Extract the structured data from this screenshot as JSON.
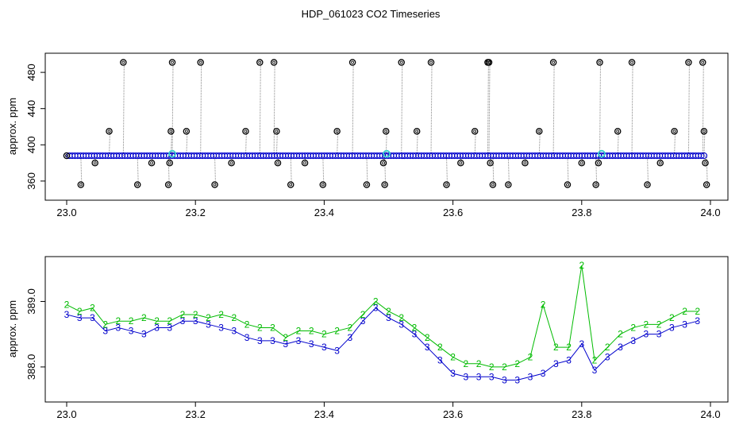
{
  "title": "HDP_061023  CO2 Timeseries",
  "colors": {
    "axis": "#000000",
    "series_black": "#000000",
    "series_blue": "#0000cc",
    "series_cyan": "#33cccc",
    "series_green": "#00bb00",
    "vline": "#888888"
  },
  "chart_data": [
    {
      "type": "scatter",
      "title": "",
      "xlabel": "",
      "ylabel": "approx. ppm",
      "xlim": [
        23.0,
        24.0
      ],
      "ylim": [
        345,
        495
      ],
      "x_ticks": [
        23.0,
        23.2,
        23.4,
        23.6,
        23.8,
        24.0
      ],
      "x_tick_labels": [
        "23.0",
        "23.2",
        "23.4",
        "23.6",
        "23.8",
        "24.0"
      ],
      "y_ticks": [
        360,
        400,
        440,
        480
      ],
      "y_tick_labels": [
        "360",
        "400",
        "440",
        "480"
      ],
      "grid": false,
      "legend": "none",
      "series": [
        {
          "marker": "open-circle",
          "color": "#000000",
          "baseline": 388,
          "x": [
            23.0,
            23.022,
            23.044,
            23.066,
            23.088,
            23.11,
            23.132,
            23.158,
            23.16,
            23.162,
            23.164,
            23.186,
            23.208,
            23.23,
            23.256,
            23.278,
            23.3,
            23.322,
            23.326,
            23.328,
            23.348,
            23.37,
            23.398,
            23.42,
            23.444,
            23.466,
            23.492,
            23.494,
            23.496,
            23.52,
            23.544,
            23.566,
            23.59,
            23.612,
            23.634,
            23.654,
            23.656,
            23.658,
            23.662,
            23.686,
            23.712,
            23.734,
            23.756,
            23.778,
            23.8,
            23.822,
            23.826,
            23.828,
            23.856,
            23.878,
            23.902,
            23.922,
            23.944,
            23.966,
            23.988,
            23.99,
            23.992,
            23.994
          ],
          "y": [
            388,
            356,
            380,
            415,
            491,
            356,
            380,
            356,
            380,
            415,
            491,
            415,
            491,
            356,
            380,
            415,
            491,
            491,
            415,
            380,
            356,
            380,
            356,
            415,
            491,
            356,
            380,
            356,
            415,
            491,
            415,
            491,
            356,
            380,
            415,
            491,
            491,
            380,
            356,
            356,
            380,
            415,
            491,
            356,
            380,
            356,
            380,
            491,
            415,
            491,
            356,
            380,
            415,
            491,
            491,
            415,
            380,
            356
          ]
        },
        {
          "marker": "open-circle",
          "color": "#0000cc",
          "x_start": 23.0,
          "x_end": 23.99,
          "value": 388
        },
        {
          "marker": "open-circle",
          "color": "#33cccc",
          "x": [
            23.164,
            23.497,
            23.831
          ],
          "y": [
            390,
            390,
            390
          ]
        }
      ]
    },
    {
      "type": "scatter",
      "title": "",
      "xlabel": "",
      "ylabel": "approx. ppm",
      "xlim": [
        23.0,
        24.0
      ],
      "ylim": [
        387.55,
        389.6
      ],
      "x_ticks": [
        23.0,
        23.2,
        23.4,
        23.6,
        23.8,
        24.0
      ],
      "x_tick_labels": [
        "23.0",
        "23.2",
        "23.4",
        "23.6",
        "23.8",
        "24.0"
      ],
      "y_ticks": [
        388.0,
        389.0
      ],
      "y_tick_labels": [
        "388.0",
        "389.0"
      ],
      "grid": false,
      "legend": "none",
      "series": [
        {
          "name": "2",
          "marker": "2",
          "color": "#00bb00",
          "x": [
            23.0,
            23.02,
            23.04,
            23.06,
            23.08,
            23.1,
            23.12,
            23.14,
            23.16,
            23.18,
            23.2,
            23.22,
            23.24,
            23.26,
            23.28,
            23.3,
            23.32,
            23.34,
            23.36,
            23.38,
            23.4,
            23.42,
            23.44,
            23.46,
            23.48,
            23.5,
            23.52,
            23.54,
            23.56,
            23.58,
            23.6,
            23.62,
            23.64,
            23.66,
            23.68,
            23.7,
            23.72,
            23.74,
            23.76,
            23.78,
            23.8,
            23.82,
            23.84,
            23.86,
            23.88,
            23.9,
            23.92,
            23.94,
            23.96,
            23.98
          ],
          "y": [
            388.95,
            388.85,
            388.9,
            388.65,
            388.7,
            388.7,
            388.75,
            388.7,
            388.7,
            388.8,
            388.8,
            388.75,
            388.8,
            388.75,
            388.65,
            388.6,
            388.6,
            388.45,
            388.55,
            388.55,
            388.5,
            388.55,
            388.6,
            388.8,
            389.0,
            388.85,
            388.75,
            388.6,
            388.45,
            388.3,
            388.15,
            388.05,
            388.05,
            388.0,
            388.0,
            388.05,
            388.15,
            388.95,
            388.3,
            388.3,
            389.55,
            388.1,
            388.3,
            388.5,
            388.6,
            388.65,
            388.65,
            388.75,
            388.85,
            388.85
          ]
        },
        {
          "name": "3",
          "marker": "3",
          "color": "#0000cc",
          "x": [
            23.0,
            23.02,
            23.04,
            23.06,
            23.08,
            23.1,
            23.12,
            23.14,
            23.16,
            23.18,
            23.2,
            23.22,
            23.24,
            23.26,
            23.28,
            23.3,
            23.32,
            23.34,
            23.36,
            23.38,
            23.4,
            23.42,
            23.44,
            23.46,
            23.48,
            23.5,
            23.52,
            23.54,
            23.56,
            23.58,
            23.6,
            23.62,
            23.64,
            23.66,
            23.68,
            23.7,
            23.72,
            23.74,
            23.76,
            23.78,
            23.8,
            23.82,
            23.84,
            23.86,
            23.88,
            23.9,
            23.92,
            23.94,
            23.96,
            23.98
          ],
          "y": [
            388.8,
            388.75,
            388.75,
            388.55,
            388.6,
            388.55,
            388.5,
            388.6,
            388.6,
            388.7,
            388.7,
            388.65,
            388.6,
            388.55,
            388.45,
            388.4,
            388.4,
            388.35,
            388.4,
            388.35,
            388.3,
            388.25,
            388.45,
            388.7,
            388.9,
            388.75,
            388.65,
            388.5,
            388.3,
            388.1,
            387.9,
            387.85,
            387.85,
            387.85,
            387.8,
            387.8,
            387.85,
            387.9,
            388.05,
            388.1,
            388.35,
            387.95,
            388.15,
            388.3,
            388.4,
            388.5,
            388.5,
            388.6,
            388.65,
            388.7
          ]
        }
      ]
    }
  ]
}
